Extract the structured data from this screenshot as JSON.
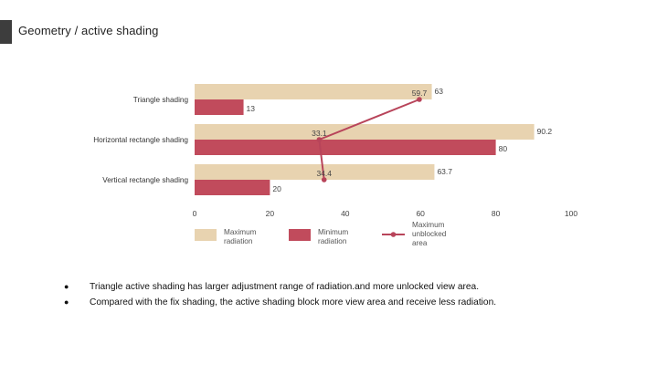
{
  "slide": {
    "title": "Geometry / active shading",
    "bullets": [
      "Triangle active shading has larger adjustment range of radiation.and more unlocked view area.",
      "Compared with the fix shading, the active shading block more view area and receive less radiation."
    ]
  },
  "chart_data": {
    "type": "bar",
    "orientation": "horizontal",
    "categories": [
      "Triangle shading",
      "Horizontal rectangle shading",
      "Vertical rectangle shading"
    ],
    "series": [
      {
        "name": "Maximum radiation",
        "kind": "bar",
        "color": "#e8d3b0",
        "values": [
          63,
          90.2,
          63.7
        ]
      },
      {
        "name": "Minimum radiation",
        "kind": "bar",
        "color": "#c14b5c",
        "values": [
          13,
          80,
          20
        ]
      },
      {
        "name": "Maximum unblocked area",
        "kind": "line",
        "color": "#b8445a",
        "values": [
          59.7,
          33.1,
          34.4
        ]
      }
    ],
    "data_labels": {
      "max": [
        "63",
        "90.2",
        "63.7"
      ],
      "min": [
        "13",
        "80",
        "20"
      ],
      "line": [
        "59.7",
        "33.1",
        "34.4"
      ]
    },
    "xlim": [
      0,
      100
    ],
    "xticks": [
      "0",
      "20",
      "40",
      "60",
      "80",
      "100"
    ],
    "legend": {
      "position": "bottom",
      "items": [
        {
          "lines": [
            "Maximum",
            "radiation"
          ]
        },
        {
          "lines": [
            "Minimum",
            "radiation"
          ]
        },
        {
          "lines": [
            "Maximum",
            "unblocked",
            "area"
          ]
        }
      ]
    }
  }
}
